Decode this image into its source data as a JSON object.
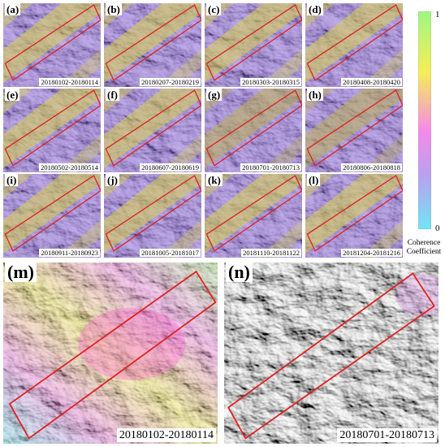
{
  "panels_small": [
    {
      "letter": "(a)",
      "dates": "20180102-20180114",
      "tint": "#d8d24a"
    },
    {
      "letter": "(b)",
      "dates": "20180207-20180219",
      "tint": "#d8d24a"
    },
    {
      "letter": "(c)",
      "dates": "20180303-20180315",
      "tint": "#d8d24a"
    },
    {
      "letter": "(d)",
      "dates": "20180408-20180420",
      "tint": "#d8d24a"
    },
    {
      "letter": "(e)",
      "dates": "20180502-20180514",
      "tint": "#d8d24a"
    },
    {
      "letter": "(f)",
      "dates": "20180607-20180619",
      "tint": "#d8d24a"
    },
    {
      "letter": "(g)",
      "dates": "20180701-20180713",
      "tint": "#bcb050"
    },
    {
      "letter": "(h)",
      "dates": "20180806-20180818",
      "tint": "#bcb050"
    },
    {
      "letter": "(i)",
      "dates": "20180911-20180923",
      "tint": "#d8d24a"
    },
    {
      "letter": "(j)",
      "dates": "20181005-20181017",
      "tint": "#d8d24a"
    },
    {
      "letter": "(k)",
      "dates": "20181110-20181122",
      "tint": "#d8d24a"
    },
    {
      "letter": "(l)",
      "dates": "20181204-20181216",
      "tint": "#d8d24a"
    }
  ],
  "panels_large": [
    {
      "letter": "(m)",
      "dates": "20180102-20180114"
    },
    {
      "letter": "(n)",
      "dates": "20180701-20180713"
    }
  ],
  "colorbar": {
    "max_label": "1",
    "min_label": "0",
    "caption_line1": "Coherence",
    "caption_line2": "Coefficient",
    "colors": [
      "#9ff783",
      "#f6ee57",
      "#f58ae8",
      "#b9a0f0",
      "#71e6f4"
    ]
  },
  "highlight_color": "#e02020"
}
